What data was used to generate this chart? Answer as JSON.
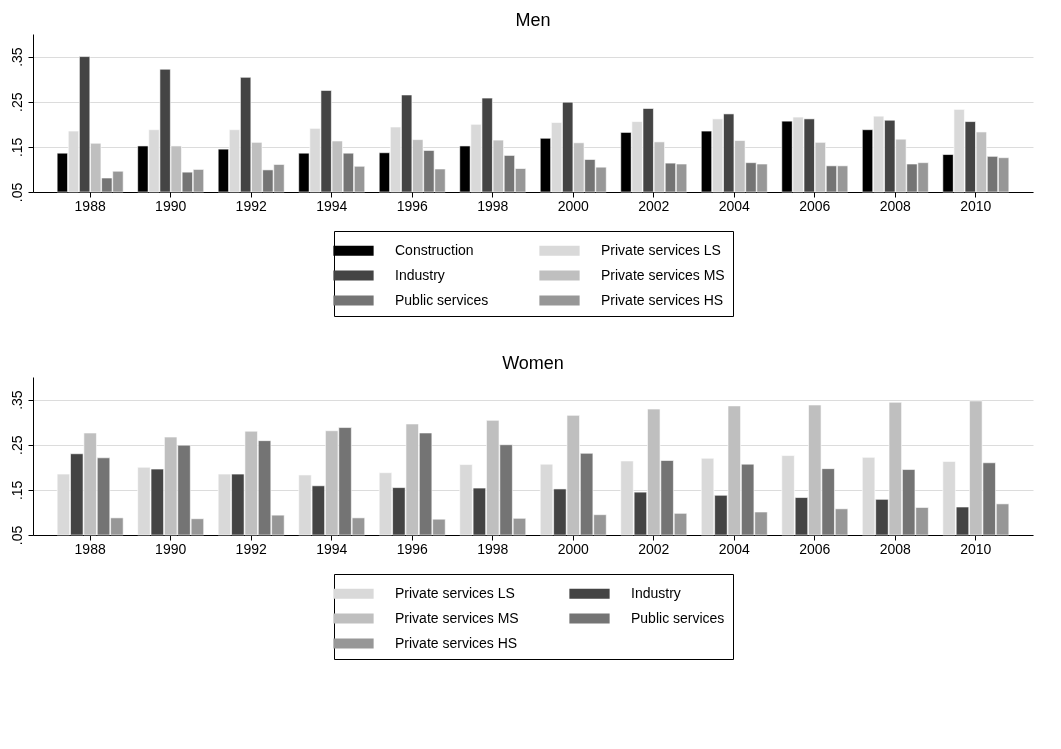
{
  "chart_data": [
    {
      "type": "bar",
      "title": "Men",
      "categories": [
        "1988",
        "1990",
        "1992",
        "1994",
        "1996",
        "1998",
        "2000",
        "2002",
        "2004",
        "2006",
        "2008",
        "2010"
      ],
      "series": [
        {
          "name": "Construction",
          "color": "#000000",
          "values": [
            0.136,
            0.152,
            0.145,
            0.136,
            0.137,
            0.152,
            0.169,
            0.182,
            0.185,
            0.207,
            0.188,
            0.133
          ]
        },
        {
          "name": "Private services LS",
          "color": "#d9d9d9",
          "values": [
            0.185,
            0.188,
            0.188,
            0.191,
            0.194,
            0.2,
            0.204,
            0.206,
            0.212,
            0.216,
            0.218,
            0.233
          ]
        },
        {
          "name": "Industry",
          "color": "#444444",
          "values": [
            0.35,
            0.322,
            0.304,
            0.275,
            0.265,
            0.258,
            0.249,
            0.235,
            0.223,
            0.212,
            0.209,
            0.206
          ]
        },
        {
          "name": "Private services MS",
          "color": "#bfbfbf",
          "values": [
            0.158,
            0.152,
            0.16,
            0.163,
            0.166,
            0.165,
            0.159,
            0.161,
            0.164,
            0.16,
            0.167,
            0.183
          ]
        },
        {
          "name": "Public services",
          "color": "#747474",
          "values": [
            0.081,
            0.094,
            0.099,
            0.136,
            0.142,
            0.131,
            0.122,
            0.114,
            0.115,
            0.108,
            0.112,
            0.129
          ]
        },
        {
          "name": "Private services HS",
          "color": "#979797",
          "values": [
            0.096,
            0.1,
            0.111,
            0.107,
            0.101,
            0.102,
            0.105,
            0.112,
            0.112,
            0.108,
            0.115,
            0.126
          ]
        }
      ],
      "ylim": [
        0.05,
        0.4
      ],
      "yticks": [
        {
          "value": 0.05,
          "label": ".05"
        },
        {
          "value": 0.15,
          "label": ".15"
        },
        {
          "value": 0.25,
          "label": ".25"
        },
        {
          "value": 0.35,
          "label": ".35"
        }
      ],
      "grid": "y",
      "legend": "bottom"
    },
    {
      "type": "bar",
      "title": "Women",
      "categories": [
        "1988",
        "1990",
        "1992",
        "1994",
        "1996",
        "1998",
        "2000",
        "2002",
        "2004",
        "2006",
        "2008",
        "2010"
      ],
      "series": [
        {
          "name": "Private services LS",
          "color": "#d9d9d9",
          "values": [
            0.185,
            0.2,
            0.185,
            0.183,
            0.188,
            0.206,
            0.207,
            0.214,
            0.22,
            0.226,
            0.222,
            0.213
          ]
        },
        {
          "name": "Industry",
          "color": "#444444",
          "values": [
            0.23,
            0.196,
            0.185,
            0.159,
            0.155,
            0.154,
            0.152,
            0.145,
            0.138,
            0.133,
            0.129,
            0.112
          ]
        },
        {
          "name": "Private services MS",
          "color": "#bfbfbf",
          "values": [
            0.276,
            0.267,
            0.28,
            0.281,
            0.296,
            0.304,
            0.315,
            0.329,
            0.336,
            0.338,
            0.344,
            0.347
          ]
        },
        {
          "name": "Public services",
          "color": "#747474",
          "values": [
            0.221,
            0.249,
            0.259,
            0.288,
            0.276,
            0.25,
            0.231,
            0.215,
            0.207,
            0.197,
            0.195,
            0.21
          ]
        },
        {
          "name": "Private services HS",
          "color": "#979797",
          "values": [
            0.088,
            0.086,
            0.094,
            0.088,
            0.085,
            0.087,
            0.095,
            0.098,
            0.101,
            0.108,
            0.111,
            0.119
          ]
        }
      ],
      "ylim": [
        0.05,
        0.4
      ],
      "yticks": [
        {
          "value": 0.05,
          "label": ".05"
        },
        {
          "value": 0.15,
          "label": ".15"
        },
        {
          "value": 0.25,
          "label": ".25"
        },
        {
          "value": 0.35,
          "label": ".35"
        }
      ],
      "grid": "y",
      "legend": "bottom"
    }
  ]
}
